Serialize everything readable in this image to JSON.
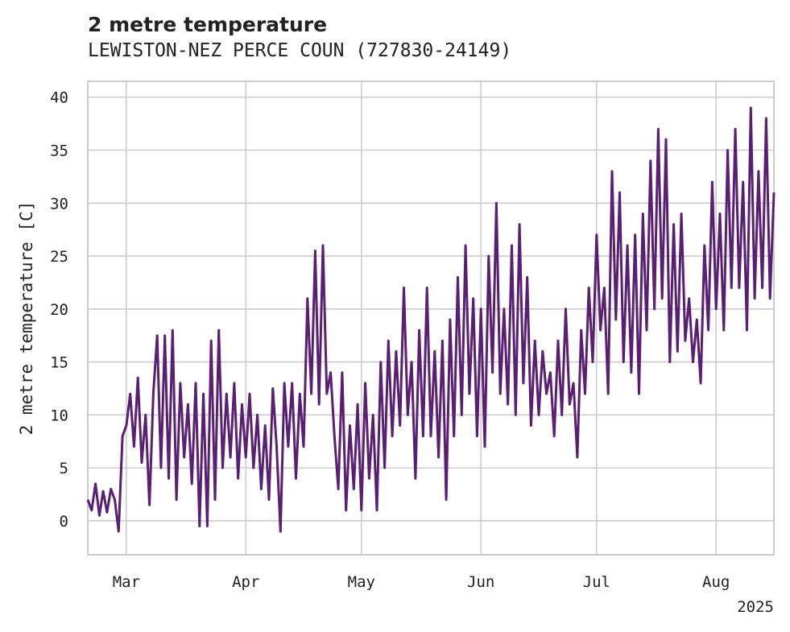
{
  "chart_data": {
    "type": "line",
    "title": "2 metre temperature",
    "subtitle": "LEWISTON-NEZ PERCE COUN (727830-24149)",
    "ylabel": "2 metre temperature [C]",
    "xlabel": "",
    "x_range": [
      "2025-02-19",
      "2025-08-16"
    ],
    "ylim": [
      -3.2,
      41.5
    ],
    "yticks": [
      0,
      5,
      10,
      15,
      20,
      25,
      30,
      35,
      40
    ],
    "xticks": [
      {
        "label": "Mar",
        "date": "2025-03-01"
      },
      {
        "label": "Apr",
        "date": "2025-04-01"
      },
      {
        "label": "May",
        "date": "2025-05-01"
      },
      {
        "label": "Jun",
        "date": "2025-06-01"
      },
      {
        "label": "Jul",
        "date": "2025-07-01"
      },
      {
        "label": "Aug",
        "date": "2025-08-01"
      }
    ],
    "x_offset_label": "2025",
    "grid": true,
    "line_color": "#5a1e73",
    "series": [
      {
        "name": "",
        "points": [
          [
            "2025-02-19",
            2.0
          ],
          [
            "2025-02-20",
            1.0
          ],
          [
            "2025-02-21",
            3.5
          ],
          [
            "2025-02-22",
            0.5
          ],
          [
            "2025-02-23",
            2.8
          ],
          [
            "2025-02-24",
            0.8
          ],
          [
            "2025-02-25",
            3.0
          ],
          [
            "2025-02-26",
            2.0
          ],
          [
            "2025-02-27",
            -1.0
          ],
          [
            "2025-02-28",
            8.0
          ],
          [
            "2025-03-01",
            9.0
          ],
          [
            "2025-03-02",
            12.0
          ],
          [
            "2025-03-03",
            7.0
          ],
          [
            "2025-03-04",
            13.5
          ],
          [
            "2025-03-05",
            5.5
          ],
          [
            "2025-03-06",
            10.0
          ],
          [
            "2025-03-07",
            1.5
          ],
          [
            "2025-03-08",
            12.0
          ],
          [
            "2025-03-09",
            17.5
          ],
          [
            "2025-03-10",
            5.0
          ],
          [
            "2025-03-11",
            17.5
          ],
          [
            "2025-03-12",
            4.0
          ],
          [
            "2025-03-13",
            18.0
          ],
          [
            "2025-03-14",
            2.0
          ],
          [
            "2025-03-15",
            13.0
          ],
          [
            "2025-03-16",
            6.0
          ],
          [
            "2025-03-17",
            11.0
          ],
          [
            "2025-03-18",
            3.5
          ],
          [
            "2025-03-19",
            13.0
          ],
          [
            "2025-03-20",
            -0.5
          ],
          [
            "2025-03-21",
            12.0
          ],
          [
            "2025-03-22",
            -0.5
          ],
          [
            "2025-03-23",
            17.0
          ],
          [
            "2025-03-24",
            2.0
          ],
          [
            "2025-03-25",
            18.0
          ],
          [
            "2025-03-26",
            5.0
          ],
          [
            "2025-03-27",
            12.0
          ],
          [
            "2025-03-28",
            6.0
          ],
          [
            "2025-03-29",
            13.0
          ],
          [
            "2025-03-30",
            4.0
          ],
          [
            "2025-03-31",
            11.0
          ],
          [
            "2025-04-01",
            6.0
          ],
          [
            "2025-04-02",
            12.0
          ],
          [
            "2025-04-03",
            5.0
          ],
          [
            "2025-04-04",
            10.0
          ],
          [
            "2025-04-05",
            3.0
          ],
          [
            "2025-04-06",
            9.0
          ],
          [
            "2025-04-07",
            2.0
          ],
          [
            "2025-04-08",
            12.5
          ],
          [
            "2025-04-09",
            7.0
          ],
          [
            "2025-04-10",
            -1.0
          ],
          [
            "2025-04-11",
            13.0
          ],
          [
            "2025-04-12",
            7.0
          ],
          [
            "2025-04-13",
            13.0
          ],
          [
            "2025-04-14",
            4.0
          ],
          [
            "2025-04-15",
            12.0
          ],
          [
            "2025-04-16",
            7.0
          ],
          [
            "2025-04-17",
            21.0
          ],
          [
            "2025-04-18",
            12.0
          ],
          [
            "2025-04-19",
            25.5
          ],
          [
            "2025-04-20",
            11.0
          ],
          [
            "2025-04-21",
            26.0
          ],
          [
            "2025-04-22",
            12.0
          ],
          [
            "2025-04-23",
            14.0
          ],
          [
            "2025-04-24",
            8.0
          ],
          [
            "2025-04-25",
            3.0
          ],
          [
            "2025-04-26",
            14.0
          ],
          [
            "2025-04-27",
            1.0
          ],
          [
            "2025-04-28",
            9.0
          ],
          [
            "2025-04-29",
            3.0
          ],
          [
            "2025-04-30",
            11.0
          ],
          [
            "2025-05-01",
            1.0
          ],
          [
            "2025-05-02",
            13.0
          ],
          [
            "2025-05-03",
            4.0
          ],
          [
            "2025-05-04",
            10.0
          ],
          [
            "2025-05-05",
            1.0
          ],
          [
            "2025-05-06",
            15.0
          ],
          [
            "2025-05-07",
            5.0
          ],
          [
            "2025-05-08",
            17.0
          ],
          [
            "2025-05-09",
            8.0
          ],
          [
            "2025-05-10",
            16.0
          ],
          [
            "2025-05-11",
            9.0
          ],
          [
            "2025-05-12",
            22.0
          ],
          [
            "2025-05-13",
            10.0
          ],
          [
            "2025-05-14",
            15.0
          ],
          [
            "2025-05-15",
            4.0
          ],
          [
            "2025-05-16",
            18.0
          ],
          [
            "2025-05-17",
            8.0
          ],
          [
            "2025-05-18",
            22.0
          ],
          [
            "2025-05-19",
            8.0
          ],
          [
            "2025-05-20",
            16.0
          ],
          [
            "2025-05-21",
            6.0
          ],
          [
            "2025-05-22",
            17.0
          ],
          [
            "2025-05-23",
            2.0
          ],
          [
            "2025-05-24",
            19.0
          ],
          [
            "2025-05-25",
            8.0
          ],
          [
            "2025-05-26",
            23.0
          ],
          [
            "2025-05-27",
            10.0
          ],
          [
            "2025-05-28",
            26.0
          ],
          [
            "2025-05-29",
            12.0
          ],
          [
            "2025-05-30",
            21.0
          ],
          [
            "2025-05-31",
            8.0
          ],
          [
            "2025-06-01",
            20.0
          ],
          [
            "2025-06-02",
            7.0
          ],
          [
            "2025-06-03",
            25.0
          ],
          [
            "2025-06-04",
            14.0
          ],
          [
            "2025-06-05",
            30.0
          ],
          [
            "2025-06-06",
            12.0
          ],
          [
            "2025-06-07",
            20.0
          ],
          [
            "2025-06-08",
            11.0
          ],
          [
            "2025-06-09",
            26.0
          ],
          [
            "2025-06-10",
            10.0
          ],
          [
            "2025-06-11",
            28.0
          ],
          [
            "2025-06-12",
            13.0
          ],
          [
            "2025-06-13",
            23.0
          ],
          [
            "2025-06-14",
            9.0
          ],
          [
            "2025-06-15",
            17.0
          ],
          [
            "2025-06-16",
            10.0
          ],
          [
            "2025-06-17",
            16.0
          ],
          [
            "2025-06-18",
            12.0
          ],
          [
            "2025-06-19",
            14.0
          ],
          [
            "2025-06-20",
            8.0
          ],
          [
            "2025-06-21",
            17.0
          ],
          [
            "2025-06-22",
            10.0
          ],
          [
            "2025-06-23",
            20.0
          ],
          [
            "2025-06-24",
            11.0
          ],
          [
            "2025-06-25",
            13.0
          ],
          [
            "2025-06-26",
            6.0
          ],
          [
            "2025-06-27",
            18.0
          ],
          [
            "2025-06-28",
            12.0
          ],
          [
            "2025-06-29",
            22.0
          ],
          [
            "2025-06-30",
            15.0
          ],
          [
            "2025-07-01",
            27.0
          ],
          [
            "2025-07-02",
            18.0
          ],
          [
            "2025-07-03",
            22.0
          ],
          [
            "2025-07-04",
            12.0
          ],
          [
            "2025-07-05",
            33.0
          ],
          [
            "2025-07-06",
            19.0
          ],
          [
            "2025-07-07",
            31.0
          ],
          [
            "2025-07-08",
            15.0
          ],
          [
            "2025-07-09",
            26.0
          ],
          [
            "2025-07-10",
            14.0
          ],
          [
            "2025-07-11",
            27.0
          ],
          [
            "2025-07-12",
            12.0
          ],
          [
            "2025-07-13",
            29.0
          ],
          [
            "2025-07-14",
            18.0
          ],
          [
            "2025-07-15",
            34.0
          ],
          [
            "2025-07-16",
            20.0
          ],
          [
            "2025-07-17",
            37.0
          ],
          [
            "2025-07-18",
            21.0
          ],
          [
            "2025-07-19",
            36.0
          ],
          [
            "2025-07-20",
            15.0
          ],
          [
            "2025-07-21",
            28.0
          ],
          [
            "2025-07-22",
            16.0
          ],
          [
            "2025-07-23",
            29.0
          ],
          [
            "2025-07-24",
            17.0
          ],
          [
            "2025-07-25",
            21.0
          ],
          [
            "2025-07-26",
            15.0
          ],
          [
            "2025-07-27",
            19.0
          ],
          [
            "2025-07-28",
            13.0
          ],
          [
            "2025-07-29",
            26.0
          ],
          [
            "2025-07-30",
            18.0
          ],
          [
            "2025-07-31",
            32.0
          ],
          [
            "2025-08-01",
            20.0
          ],
          [
            "2025-08-02",
            29.0
          ],
          [
            "2025-08-03",
            18.0
          ],
          [
            "2025-08-04",
            35.0
          ],
          [
            "2025-08-05",
            22.0
          ],
          [
            "2025-08-06",
            37.0
          ],
          [
            "2025-08-07",
            22.0
          ],
          [
            "2025-08-08",
            32.0
          ],
          [
            "2025-08-09",
            18.0
          ],
          [
            "2025-08-10",
            39.0
          ],
          [
            "2025-08-11",
            21.0
          ],
          [
            "2025-08-12",
            33.0
          ],
          [
            "2025-08-13",
            22.0
          ],
          [
            "2025-08-14",
            38.0
          ],
          [
            "2025-08-15",
            21.0
          ],
          [
            "2025-08-16",
            31.0
          ]
        ]
      }
    ]
  }
}
